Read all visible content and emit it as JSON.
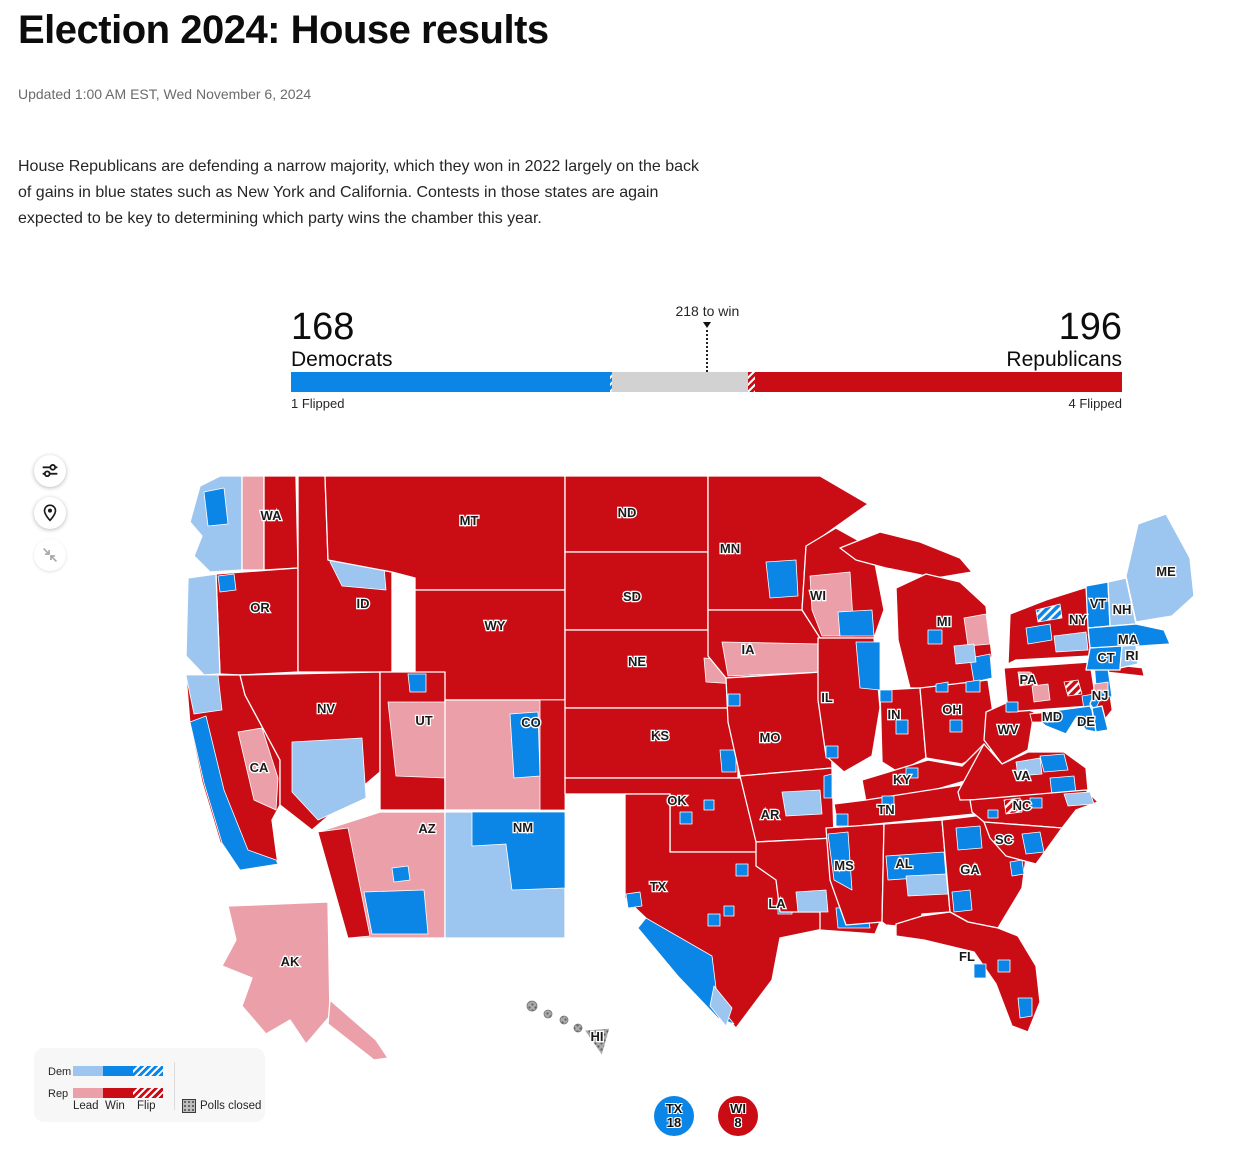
{
  "header": {
    "title": "Election 2024: House results",
    "updated": "Updated 1:00 AM EST, Wed November 6, 2024",
    "intro": "House Republicans are defending a narrow majority, which they won in 2022 largely on the back of gains in blue states such as New York and California. Contests in those states are again expected to be key to determining which party wins the chamber this year."
  },
  "colors": {
    "dem_win": "#0b85e6",
    "dem_lead": "#9cc5f0",
    "rep_win": "#ca0c15",
    "rep_lead": "#eba0a9",
    "undecided_gray": "#d2d2d2",
    "closed_base": "#ababab",
    "closed_dot": "#5f5f5f"
  },
  "balance_of_power": {
    "dem": {
      "count": "168",
      "label": "Democrats",
      "flipped": "1 Flipped"
    },
    "rep": {
      "count": "196",
      "label": "Republicans",
      "flipped": "4 Flipped"
    },
    "marker": {
      "label": "218 to win",
      "pct": 50.11
    },
    "total_seats": 435,
    "bar": {
      "segments": [
        {
          "type": "solid",
          "color": "dem_win",
          "pct": 38.39
        },
        {
          "type": "hatch",
          "color": "dem_win",
          "pct": 0.23
        },
        {
          "type": "solid",
          "color": "undecided_gray",
          "pct": 16.32
        },
        {
          "type": "hatch",
          "color": "rep_win",
          "pct": 0.92
        },
        {
          "type": "solid",
          "color": "rep_win",
          "pct": 44.14
        }
      ]
    }
  },
  "legend": {
    "dem_label": "Dem",
    "rep_label": "Rep",
    "lead": "Lead",
    "win": "Win",
    "flip": "Flip",
    "polls_closed": "Polls closed"
  },
  "map": {
    "labels": {
      "wa": "WA",
      "or": "OR",
      "ca": "CA",
      "id": "ID",
      "nv": "NV",
      "ut": "UT",
      "az": "AZ",
      "mt": "MT",
      "wy": "WY",
      "co": "CO",
      "nm": "NM",
      "nd": "ND",
      "sd": "SD",
      "ne": "NE",
      "ks": "KS",
      "ok": "OK",
      "tx": "TX",
      "mn": "MN",
      "ia": "IA",
      "mo": "MO",
      "ar": "AR",
      "la": "LA",
      "wi": "WI",
      "il": "IL",
      "mi": "MI",
      "in": "IN",
      "oh": "OH",
      "ky": "KY",
      "tn": "TN",
      "ms": "MS",
      "al": "AL",
      "ga": "GA",
      "fl": "FL",
      "sc": "SC",
      "nc": "NC",
      "va": "VA",
      "wv": "WV",
      "md": "MD",
      "de": "DE",
      "nj": "NJ",
      "pa": "PA",
      "ny": "NY",
      "vt": "VT",
      "nh": "NH",
      "ma": "MA",
      "ct": "CT",
      "ri": "RI",
      "me": "ME",
      "ak": "AK",
      "hi": "HI"
    }
  },
  "badges": [
    {
      "line1": "TX",
      "line2": "18",
      "color": "dem_win"
    },
    {
      "line1": "WI",
      "line2": "8",
      "color": "rep_win"
    }
  ]
}
